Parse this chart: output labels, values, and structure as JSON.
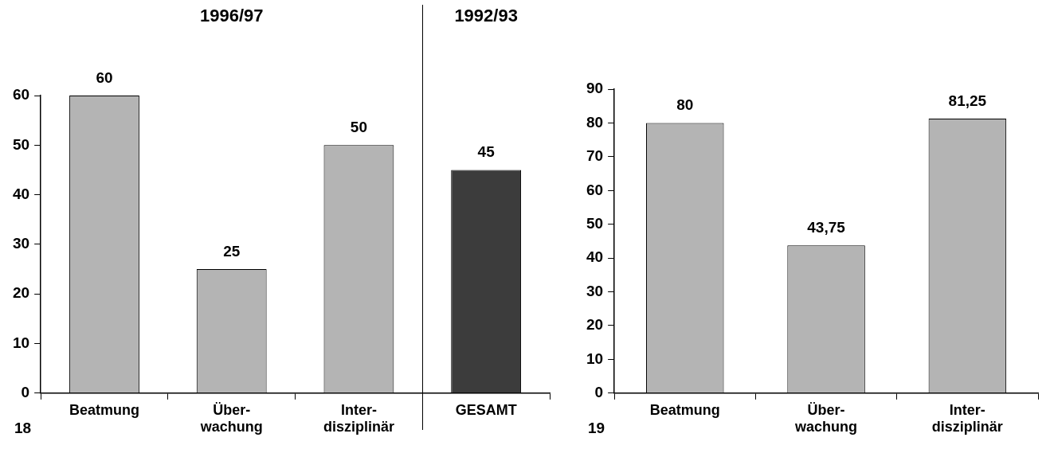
{
  "chart_data": [
    {
      "type": "bar",
      "categories": [
        "Beatmung",
        "Über-\nwachung",
        "Inter-\ndisziplinär",
        "GESAMT"
      ],
      "values": [
        60,
        25,
        50,
        45
      ],
      "colors": [
        "#b4b4b4",
        "#b4b4b4",
        "#b4b4b4",
        "#3c3c3c"
      ],
      "value_labels": [
        "60",
        "25",
        "50",
        "45"
      ],
      "ylim": [
        0,
        60
      ],
      "yticks": [
        0,
        10,
        20,
        30,
        40,
        50,
        60
      ],
      "grid": false,
      "legend": false,
      "annotations": [
        "1996/97",
        "1992/93",
        "18"
      ]
    },
    {
      "type": "bar",
      "categories": [
        "Beatmung",
        "Über-\nwachung",
        "Inter-\ndisziplinär"
      ],
      "values": [
        80,
        43.75,
        81.25
      ],
      "colors": [
        "#b4b4b4",
        "#b4b4b4",
        "#b4b4b4"
      ],
      "value_labels": [
        "80",
        "43,75",
        "81,25"
      ],
      "ylim": [
        0,
        90
      ],
      "yticks": [
        0,
        10,
        20,
        30,
        40,
        50,
        60,
        70,
        80,
        90
      ],
      "grid": false,
      "legend": false,
      "annotations": [
        "19"
      ]
    }
  ]
}
